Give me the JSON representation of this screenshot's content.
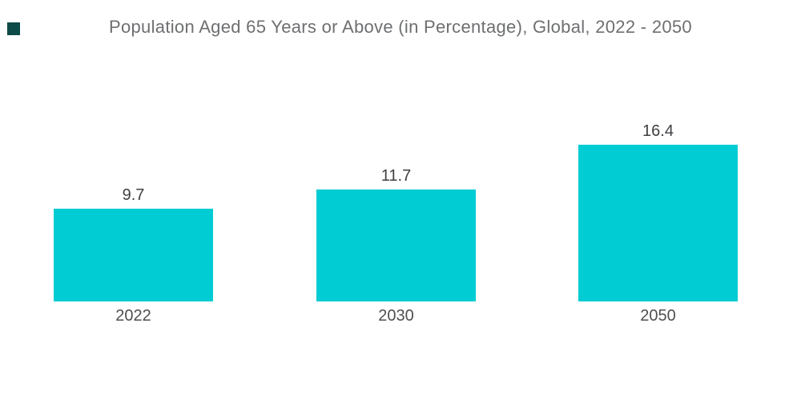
{
  "page": {
    "background_color": "#ffffff"
  },
  "brand_mark": {
    "shape": "square",
    "color": "#0d4b48"
  },
  "chart_data": {
    "type": "bar",
    "title": "Population Aged 65 Years or Above (in Percentage), Global, 2022 - 2050",
    "categories": [
      "2022",
      "2030",
      "2050"
    ],
    "values": [
      9.7,
      11.7,
      16.4
    ],
    "xlabel": "",
    "ylabel": "",
    "ylim": [
      0,
      16.4
    ],
    "grid": false,
    "legend": false,
    "axes_visible": false,
    "value_labels_position": "above-bars",
    "bar_color": "#02ccd3",
    "title_color": "#6e6f71",
    "value_label_color": "#3f4043",
    "category_label_color": "#4e4f51",
    "background_color": "#ffffff"
  }
}
